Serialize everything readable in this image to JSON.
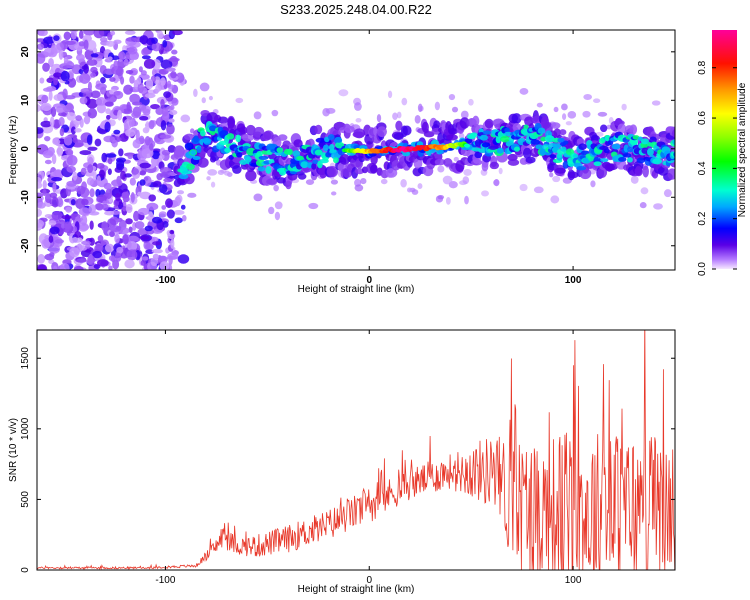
{
  "title": "S233.2025.248.04.00.R22",
  "chart_data": [
    {
      "type": "heatmap",
      "title": "S233.2025.248.04.00.R22",
      "xlabel": "Height of straight line (km)",
      "ylabel": "Frequency (Hz)",
      "xlim": [
        -163,
        150
      ],
      "ylim": [
        -25,
        24.5
      ],
      "xticks": [
        -100,
        0,
        100
      ],
      "yticks": [
        -20,
        -10,
        0,
        10,
        20
      ],
      "colorbar": {
        "label": "Normalized spectral amplitude",
        "range": [
          0,
          0.95
        ],
        "ticks": [
          0.0,
          0.2,
          0.4,
          0.6,
          0.8
        ],
        "tick_labels": [
          "0.0",
          "0.2",
          "0.4",
          "0.6",
          "0.8"
        ]
      },
      "features": [
        {
          "region": "noise",
          "x_range": [
            -163,
            -95
          ],
          "freq_range": [
            -25,
            24.5
          ],
          "amplitude": 0.1
        },
        {
          "region": "carrier",
          "x_range": [
            -95,
            150
          ],
          "center_freq": [
            [
              -95,
              -5
            ],
            [
              -80,
              3
            ],
            [
              -60,
              -1
            ],
            [
              -40,
              -3
            ],
            [
              -20,
              0
            ],
            [
              0,
              -0.5
            ],
            [
              20,
              0
            ],
            [
              40,
              0.5
            ],
            [
              60,
              1.5
            ],
            [
              80,
              2.5
            ],
            [
              100,
              -2
            ],
            [
              120,
              0.5
            ],
            [
              150,
              -1
            ]
          ],
          "amplitude": 0.4
        },
        {
          "region": "peak",
          "x_range": [
            -12,
            48
          ],
          "center_freq": 0,
          "amplitude": 0.93
        }
      ]
    },
    {
      "type": "line",
      "xlabel": "Height of straight line (km)",
      "ylabel": "SNR (10 * v/v)",
      "xlim": [
        -163,
        150
      ],
      "ylim": [
        0,
        1700
      ],
      "xticks": [
        -100,
        0,
        100
      ],
      "yticks": [
        0,
        500,
        1000,
        1500
      ],
      "color": "#e8382a",
      "envelope": {
        "x": [
          -163,
          -110,
          -85,
          -75,
          -72,
          -65,
          -55,
          -40,
          -20,
          0,
          20,
          40,
          60,
          70,
          80,
          100,
          120,
          150
        ],
        "base": [
          15,
          15,
          30,
          170,
          240,
          170,
          170,
          220,
          320,
          460,
          610,
          700,
          700,
          500,
          420,
          380,
          420,
          420
        ],
        "amp": [
          10,
          10,
          15,
          80,
          130,
          90,
          120,
          140,
          160,
          180,
          160,
          180,
          380,
          650,
          750,
          900,
          850,
          700
        ]
      }
    }
  ]
}
